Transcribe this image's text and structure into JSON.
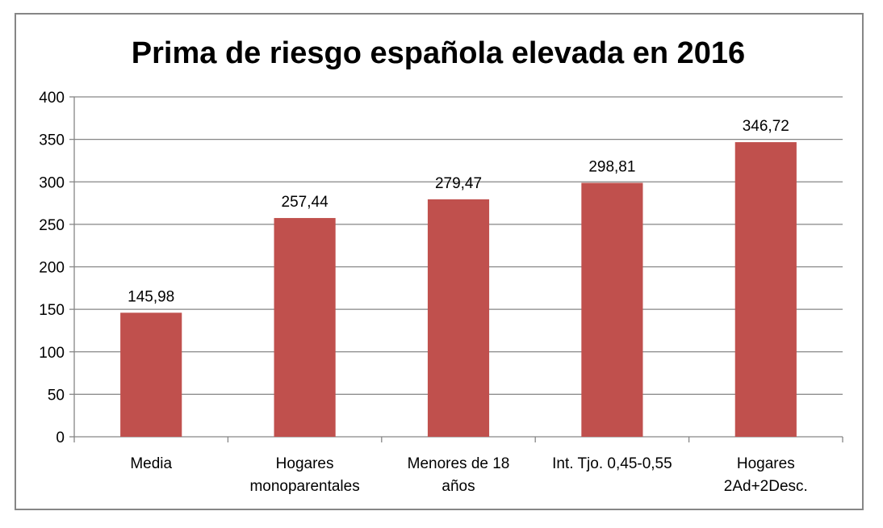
{
  "chart_data": {
    "type": "bar",
    "title": "Prima de riesgo española elevada en 2016",
    "xlabel": "",
    "ylabel": "",
    "ylim": [
      0,
      400
    ],
    "yticks": [
      "0",
      "50",
      "100",
      "150",
      "200",
      "250",
      "300",
      "350",
      "400"
    ],
    "grid": true,
    "legend": "none",
    "categories": [
      [
        "Media"
      ],
      [
        "Hogares",
        "monoparentales"
      ],
      [
        "Menores de 18",
        "años"
      ],
      [
        "Int. Tjo. 0,45-0,55"
      ],
      [
        "Hogares",
        "2Ad+2Desc."
      ]
    ],
    "values": [
      145.98,
      257.44,
      279.47,
      298.81,
      346.72
    ],
    "data_labels": [
      "145,98",
      "257,44",
      "279,47",
      "298,81",
      "346,72"
    ],
    "colors": {
      "bar": "#C0504D",
      "grid": "#868686",
      "axis": "#868686"
    }
  }
}
